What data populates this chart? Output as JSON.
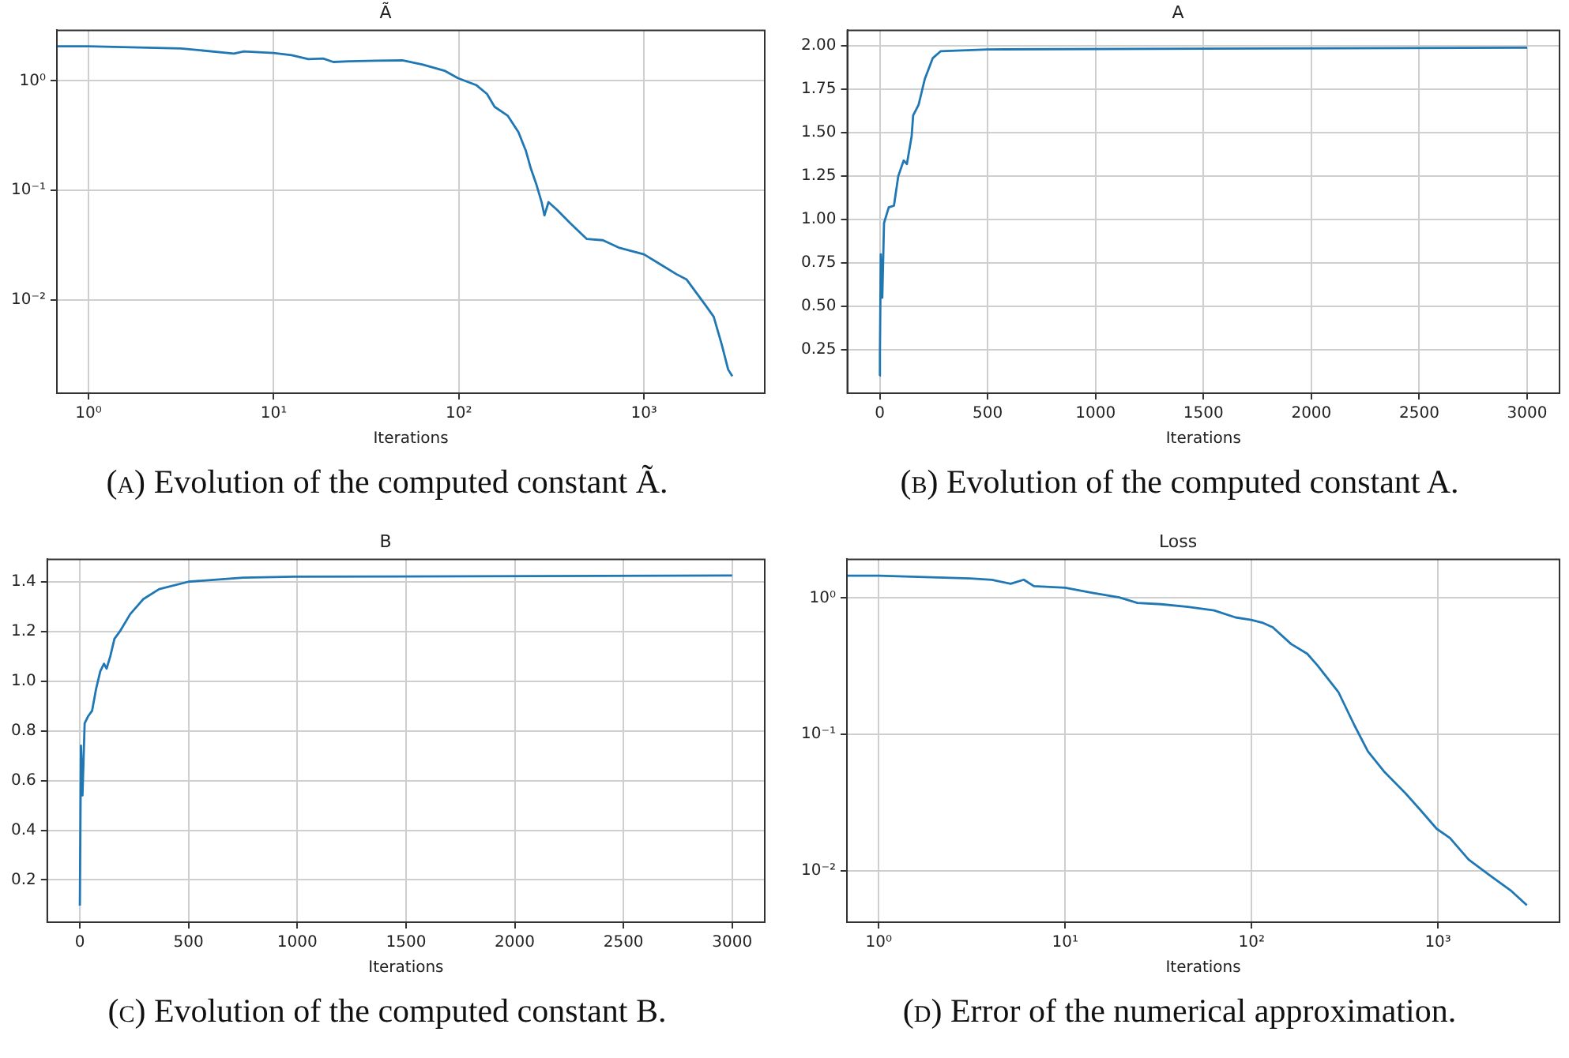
{
  "chart_data": [
    {
      "type": "line",
      "title": "Ã",
      "xlabel": "Iterations",
      "log": "xy",
      "grid": true,
      "legend": false,
      "marker": "none",
      "line_style": "solid",
      "xlim": [
        0.675,
        4490
      ],
      "ylim": [
        0.0014,
        2.9
      ],
      "xticks": [
        {
          "value": 1,
          "label": "10⁰"
        },
        {
          "value": 10,
          "label": "10¹"
        },
        {
          "value": 100,
          "label": "10²"
        },
        {
          "value": 1000,
          "label": "10³"
        }
      ],
      "yticks": [
        {
          "value": 0.01,
          "label": "10⁻²"
        },
        {
          "value": 0.1,
          "label": "10⁻¹"
        },
        {
          "value": 1,
          "label": "10⁰"
        }
      ],
      "annotations": [
        "(a) Evolution of the computed constant Ã."
      ],
      "series": [
        {
          "color": "#1f77b4",
          "x": [
            0.675,
            1,
            3.15,
            6.1,
            6.9,
            10,
            12.5,
            15.4,
            18.5,
            21,
            25.6,
            35.8,
            49.6,
            64,
            83.7,
            99,
            124,
            142,
            156,
            184,
            210,
            230,
            245,
            262,
            280,
            290,
            305,
            340,
            400,
            490,
            600,
            730,
            1000,
            1230,
            1500,
            1700,
            2150,
            2380,
            2630,
            2850,
            3000
          ],
          "values": [
            2.07,
            2.07,
            1.98,
            1.78,
            1.86,
            1.8,
            1.72,
            1.58,
            1.6,
            1.49,
            1.51,
            1.53,
            1.54,
            1.41,
            1.24,
            1.06,
            0.917,
            0.76,
            0.58,
            0.48,
            0.34,
            0.231,
            0.158,
            0.114,
            0.078,
            0.059,
            0.078,
            0.066,
            0.05,
            0.036,
            0.035,
            0.03,
            0.026,
            0.021,
            0.0171,
            0.0153,
            0.0089,
            0.007,
            0.0039,
            0.0023,
            0.002
          ]
        }
      ]
    },
    {
      "type": "line",
      "title": "A",
      "xlabel": "Iterations",
      "grid": true,
      "legend": false,
      "marker": "none",
      "line_style": "solid",
      "xlim": [
        -150,
        3150
      ],
      "ylim": [
        0,
        2.09
      ],
      "xticks": [
        0,
        500,
        1000,
        1500,
        2000,
        2500,
        3000
      ],
      "yticks": [
        0.25,
        {
          "value": 0.5,
          "label": "0.50"
        },
        0.75,
        {
          "value": 1,
          "label": "1.00"
        },
        1.25,
        {
          "value": 1.5,
          "label": "1.50"
        },
        1.75,
        {
          "value": 2,
          "label": "2.00"
        }
      ],
      "annotations": [
        "(b) Evolution of the computed constant A."
      ],
      "series": [
        {
          "color": "#1f77b4",
          "x": [
            0,
            1,
            5,
            12,
            20,
            42,
            66,
            86,
            111,
            126,
            148,
            155,
            180,
            209,
            246,
            283,
            500,
            3000
          ],
          "values": [
            0.1,
            0.22,
            0.8,
            0.55,
            0.98,
            1.07,
            1.08,
            1.25,
            1.34,
            1.32,
            1.48,
            1.6,
            1.66,
            1.81,
            1.93,
            1.97,
            1.98,
            1.99
          ]
        }
      ]
    },
    {
      "type": "line",
      "title": "B",
      "xlabel": "Iterations",
      "grid": true,
      "legend": false,
      "marker": "none",
      "line_style": "solid",
      "xlim": [
        -150,
        3150
      ],
      "ylim": [
        0.03,
        1.49
      ],
      "xticks": [
        0,
        500,
        1000,
        1500,
        2000,
        2500,
        3000
      ],
      "yticks": [
        0.2,
        0.4,
        0.6,
        0.8,
        {
          "value": 1,
          "label": "1.0"
        },
        1.2,
        1.4
      ],
      "annotations": [
        "(c) Evolution of the computed constant B."
      ],
      "series": [
        {
          "color": "#1f77b4",
          "x": [
            0,
            5,
            12,
            22,
            39,
            56,
            75,
            94,
            111,
            123,
            140,
            159,
            184,
            232,
            292,
            365,
            500,
            751,
            988,
            3000
          ],
          "values": [
            0.097,
            0.74,
            0.54,
            0.83,
            0.86,
            0.88,
            0.97,
            1.04,
            1.07,
            1.05,
            1.1,
            1.17,
            1.2,
            1.27,
            1.33,
            1.37,
            1.4,
            1.416,
            1.42,
            1.425
          ]
        }
      ]
    },
    {
      "type": "line",
      "title": "Loss",
      "xlabel": "Iterations",
      "log": "xy",
      "grid": true,
      "legend": false,
      "marker": "none",
      "line_style": "solid",
      "xlim": [
        0.675,
        4490
      ],
      "ylim": [
        0.0042,
        1.92
      ],
      "xticks": [
        {
          "value": 1,
          "label": "10⁰"
        },
        {
          "value": 10,
          "label": "10¹"
        },
        {
          "value": 100,
          "label": "10²"
        },
        {
          "value": 1000,
          "label": "10³"
        }
      ],
      "yticks": [
        {
          "value": 0.01,
          "label": "10⁻²"
        },
        {
          "value": 0.1,
          "label": "10⁻¹"
        },
        {
          "value": 1,
          "label": "10⁰"
        }
      ],
      "annotations": [
        "(d) Error of the numerical approximation."
      ],
      "series": [
        {
          "color": "#1f77b4",
          "x": [
            0.675,
            1,
            3.1,
            4.05,
            5.1,
            6,
            6.8,
            10,
            14,
            19.5,
            24.4,
            32.7,
            45.6,
            63,
            82,
            99.6,
            114,
            130,
            163,
            199,
            226,
            292,
            357,
            421,
            517,
            670,
            811,
            985,
            1160,
            1460,
            1890,
            2450,
            3000
          ],
          "values": [
            1.455,
            1.455,
            1.39,
            1.36,
            1.27,
            1.36,
            1.22,
            1.19,
            1.09,
            1.01,
            0.92,
            0.9,
            0.86,
            0.81,
            0.72,
            0.69,
            0.66,
            0.61,
            0.46,
            0.39,
            0.32,
            0.205,
            0.116,
            0.075,
            0.053,
            0.037,
            0.0276,
            0.0203,
            0.0174,
            0.0121,
            0.0093,
            0.0072,
            0.0056
          ]
        }
      ]
    }
  ]
}
